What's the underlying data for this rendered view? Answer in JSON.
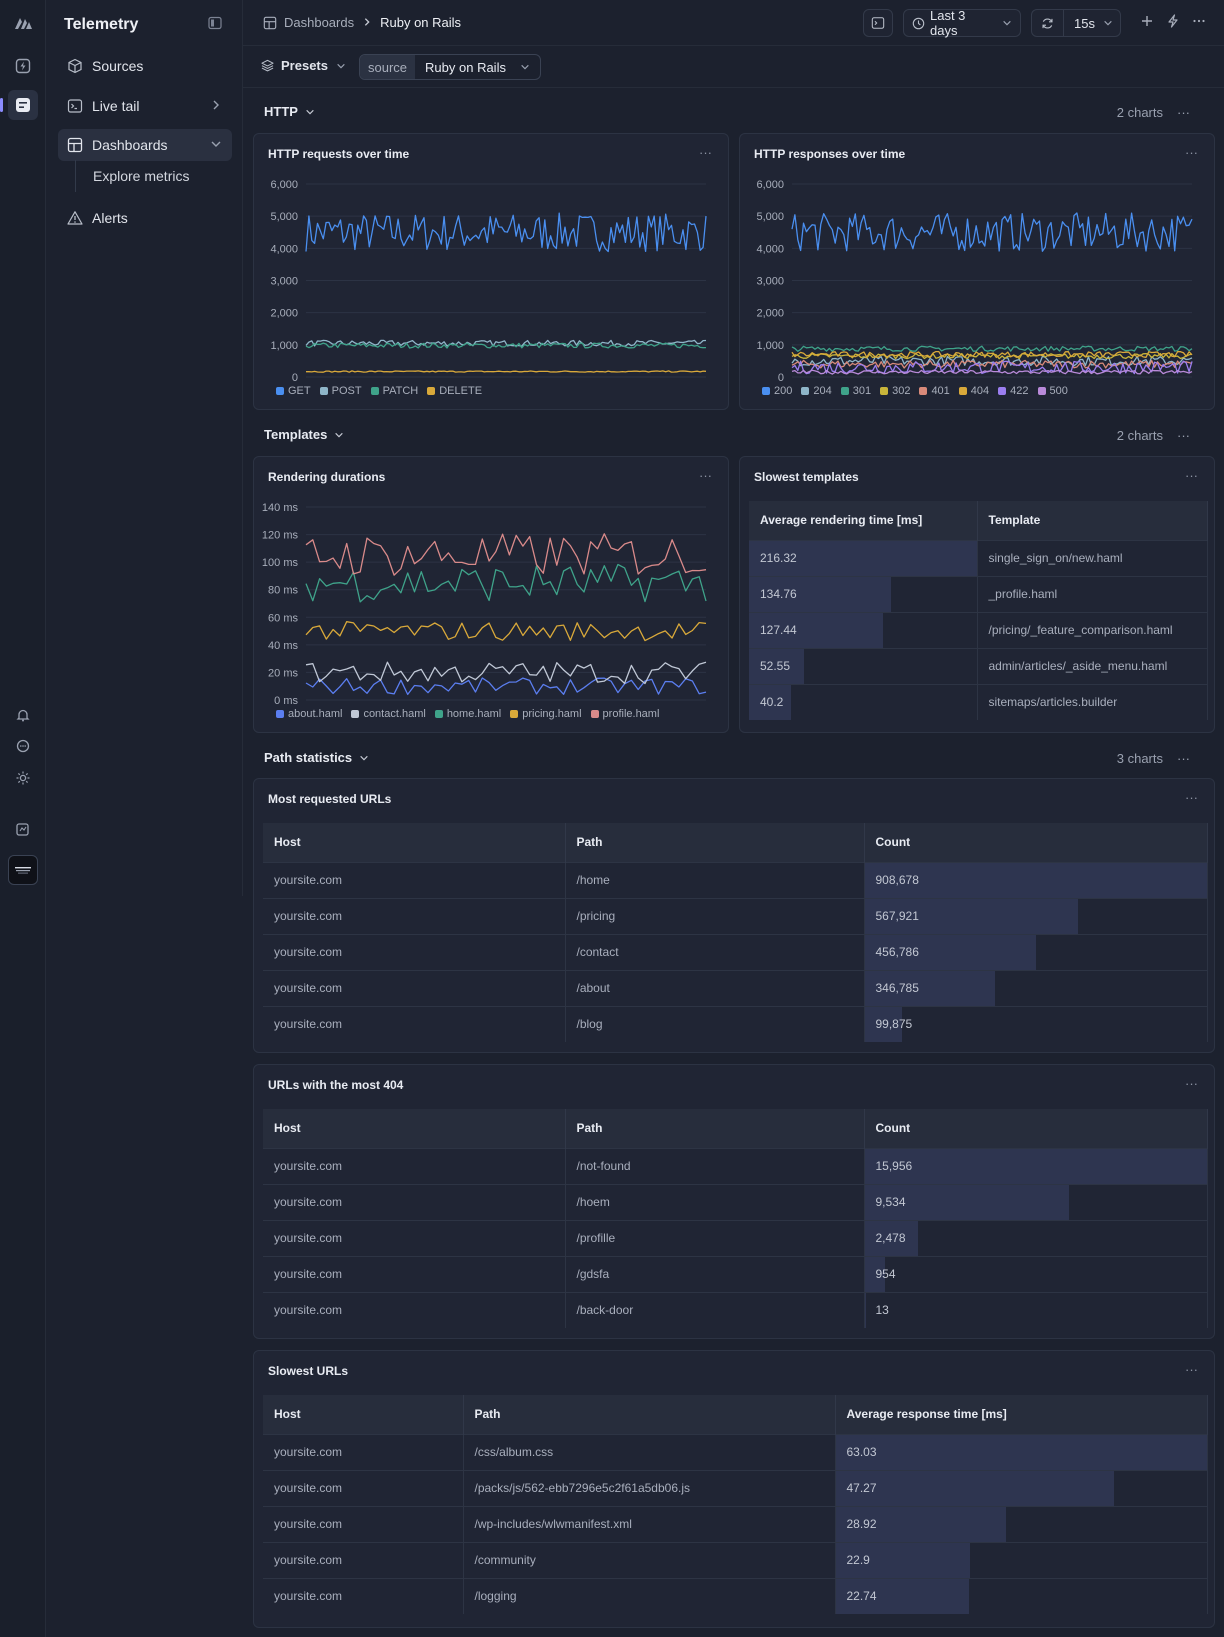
{
  "sidebar": {
    "title": "Telemetry",
    "items": [
      {
        "label": "Sources",
        "icon": "cube-icon"
      },
      {
        "label": "Live tail",
        "icon": "terminal-icon"
      },
      {
        "label": "Dashboards",
        "icon": "dashboard-icon"
      },
      {
        "label": "Alerts",
        "icon": "warning-icon"
      }
    ],
    "sub_items": [
      {
        "label": "Explore metrics"
      }
    ]
  },
  "topbar": {
    "breadcrumb": [
      "Dashboards",
      "Ruby on Rails"
    ],
    "time_range": "Last 3 days",
    "refresh_interval": "15s"
  },
  "filterbar": {
    "presets_label": "Presets",
    "source_key": "source",
    "source_value": "Ruby on Rails"
  },
  "sections": [
    {
      "title": "HTTP",
      "count": "2 charts"
    },
    {
      "title": "Templates",
      "count": "2 charts"
    },
    {
      "title": "Path statistics",
      "count": "3 charts"
    }
  ],
  "chart_data": [
    {
      "type": "line",
      "title": "HTTP requests over time",
      "ylim": [
        0,
        6000
      ],
      "yticks": [
        "0",
        "1,000",
        "2,000",
        "3,000",
        "4,000",
        "5,000",
        "6,000"
      ],
      "series": [
        {
          "name": "GET",
          "color": "#4a8ff0",
          "approx_mean": 4500,
          "amplitude": 600
        },
        {
          "name": "POST",
          "color": "#8fb6c9",
          "approx_mean": 1050,
          "amplitude": 90
        },
        {
          "name": "PATCH",
          "color": "#3fa38a",
          "approx_mean": 980,
          "amplitude": 80
        },
        {
          "name": "DELETE",
          "color": "#d9a93a",
          "approx_mean": 170,
          "amplitude": 20
        }
      ]
    },
    {
      "type": "line",
      "title": "HTTP responses over time",
      "ylim": [
        0,
        6000
      ],
      "yticks": [
        "0",
        "1,000",
        "2,000",
        "3,000",
        "4,000",
        "5,000",
        "6,000"
      ],
      "series": [
        {
          "name": "200",
          "color": "#4a8ff0",
          "approx_mean": 4500,
          "amplitude": 600
        },
        {
          "name": "204",
          "color": "#8fb6c9",
          "approx_mean": 500,
          "amplitude": 150
        },
        {
          "name": "301",
          "color": "#3fa38a",
          "approx_mean": 880,
          "amplitude": 80
        },
        {
          "name": "302",
          "color": "#c9b53a",
          "approx_mean": 650,
          "amplitude": 80
        },
        {
          "name": "401",
          "color": "#d98a7a",
          "approx_mean": 400,
          "amplitude": 120
        },
        {
          "name": "404",
          "color": "#d9a93a",
          "approx_mean": 700,
          "amplitude": 90
        },
        {
          "name": "422",
          "color": "#9b7ef0",
          "approx_mean": 300,
          "amplitude": 200
        },
        {
          "name": "500",
          "color": "#b98ad9",
          "approx_mean": 150,
          "amplitude": 60
        }
      ]
    },
    {
      "type": "line",
      "title": "Rendering durations",
      "ylim": [
        0,
        140
      ],
      "yticks": [
        "0 ms",
        "20 ms",
        "40 ms",
        "60 ms",
        "80 ms",
        "100 ms",
        "120 ms",
        "140 ms"
      ],
      "series": [
        {
          "name": "about.haml",
          "color": "#5b7ef0",
          "approx_mean": 10,
          "amplitude": 6
        },
        {
          "name": "contact.haml",
          "color": "#c0c8d6",
          "approx_mean": 20,
          "amplitude": 8
        },
        {
          "name": "home.haml",
          "color": "#3fa38a",
          "approx_mean": 85,
          "amplitude": 14
        },
        {
          "name": "pricing.haml",
          "color": "#d9a93a",
          "approx_mean": 50,
          "amplitude": 7
        },
        {
          "name": "profile.haml",
          "color": "#d98a8a",
          "approx_mean": 105,
          "amplitude": 16
        }
      ]
    }
  ],
  "tables": {
    "slowest_templates": {
      "title": "Slowest templates",
      "headers": [
        "Average rendering time [ms]",
        "Template"
      ],
      "rows": [
        {
          "value": "216.32",
          "num": 216.32,
          "label": "single_sign_on/new.haml"
        },
        {
          "value": "134.76",
          "num": 134.76,
          "label": "_profile.haml"
        },
        {
          "value": "127.44",
          "num": 127.44,
          "label": "/pricing/_feature_comparison.haml"
        },
        {
          "value": "52.55",
          "num": 52.55,
          "label": "admin/articles/_aside_menu.haml"
        },
        {
          "value": "40.2",
          "num": 40.2,
          "label": "sitemaps/articles.builder"
        }
      ]
    },
    "most_requested": {
      "title": "Most requested URLs",
      "headers": [
        "Host",
        "Path",
        "Count"
      ],
      "rows": [
        {
          "host": "yoursite.com",
          "path": "/home",
          "value": "908,678",
          "num": 908678
        },
        {
          "host": "yoursite.com",
          "path": "/pricing",
          "value": "567,921",
          "num": 567921
        },
        {
          "host": "yoursite.com",
          "path": "/contact",
          "value": "456,786",
          "num": 456786
        },
        {
          "host": "yoursite.com",
          "path": "/about",
          "value": "346,785",
          "num": 346785
        },
        {
          "host": "yoursite.com",
          "path": "/blog",
          "value": "99,875",
          "num": 99875
        }
      ]
    },
    "most_404": {
      "title": "URLs with the most 404",
      "headers": [
        "Host",
        "Path",
        "Count"
      ],
      "rows": [
        {
          "host": "yoursite.com",
          "path": "/not-found",
          "value": "15,956",
          "num": 15956
        },
        {
          "host": "yoursite.com",
          "path": "/hoem",
          "value": "9,534",
          "num": 9534
        },
        {
          "host": "yoursite.com",
          "path": "/profille",
          "value": "2,478",
          "num": 2478
        },
        {
          "host": "yoursite.com",
          "path": "/gdsfa",
          "value": "954",
          "num": 954
        },
        {
          "host": "yoursite.com",
          "path": "/back-door",
          "value": "13",
          "num": 13
        }
      ]
    },
    "slowest_urls": {
      "title": "Slowest URLs",
      "headers": [
        "Host",
        "Path",
        "Average response time [ms]"
      ],
      "rows": [
        {
          "host": "yoursite.com",
          "path": "/css/album.css",
          "value": "63.03",
          "num": 63.03
        },
        {
          "host": "yoursite.com",
          "path": "/packs/js/562-ebb7296e5c2f61a5db06.js",
          "value": "47.27",
          "num": 47.27
        },
        {
          "host": "yoursite.com",
          "path": "/wp-includes/wlwmanifest.xml",
          "value": "28.92",
          "num": 28.92
        },
        {
          "host": "yoursite.com",
          "path": "/community",
          "value": "22.9",
          "num": 22.9
        },
        {
          "host": "yoursite.com",
          "path": "/logging",
          "value": "22.74",
          "num": 22.74
        }
      ]
    }
  }
}
